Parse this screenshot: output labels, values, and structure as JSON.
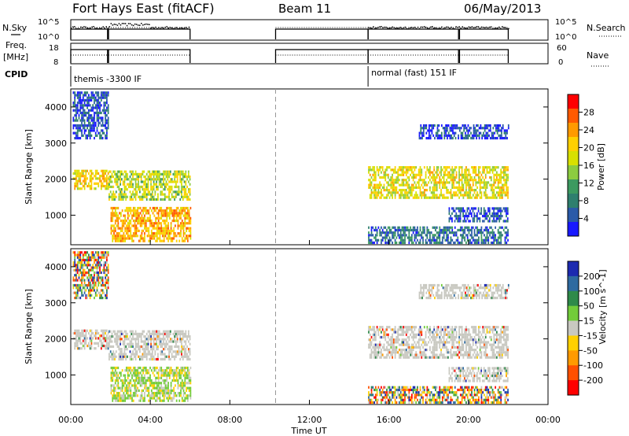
{
  "header": {
    "title": "Fort Hays East (fitACF)",
    "beam": "Beam 11",
    "date": "06/May/2013"
  },
  "side_labels": {
    "nsky": "N.Sky",
    "nsearch": "N.Search",
    "freq_line1": "Freq.",
    "freq_line2": "[MHz]",
    "nave": "Nave",
    "cpid": "CPID"
  },
  "cpid_segments": [
    {
      "start_hour": 0.0,
      "end_hour": 6.0,
      "label": "themis -3300 IF"
    },
    {
      "start_hour": 14.95,
      "end_hour": 22.0,
      "label": "normal (fast) 151 IF"
    }
  ],
  "noise_ticks": {
    "top": "10^5",
    "bottom": "10^0"
  },
  "freq_ticks": [
    "18",
    "8"
  ],
  "nave_ticks": [
    "60",
    "0"
  ],
  "panels": [
    {
      "ylabel": "Slant Range [km]",
      "quantity": "Power [dB]"
    },
    {
      "ylabel": "Slant Range [km]",
      "quantity": "Velocity [m s^-1]"
    }
  ],
  "power_colorbar": {
    "title": "Power [dB]",
    "ticks": [
      "28",
      "24",
      "20",
      "16",
      "12",
      "8",
      "4"
    ],
    "colors": [
      "#ff0000",
      "#ff5a00",
      "#ff9a00",
      "#ffd000",
      "#d8e000",
      "#8ccc40",
      "#3c9a60",
      "#2e7f6e",
      "#2a5aa8",
      "#1818ff"
    ]
  },
  "velocity_colorbar": {
    "title": "Velocity [m s^-1]",
    "ticks": [
      "200",
      "100",
      "50",
      "15",
      "-15",
      "-50",
      "-100",
      "-200"
    ],
    "colors": [
      "#1c2ab0",
      "#2e6aa0",
      "#2e8a4a",
      "#72cc3a",
      "#c8c8c0",
      "#ffd000",
      "#ff9a00",
      "#ff5000",
      "#ff0000"
    ]
  },
  "time_axis": {
    "label": "Time UT",
    "ticks": [
      "00:00",
      "04:00",
      "08:00",
      "12:00",
      "16:00",
      "20:00",
      "00:00"
    ]
  },
  "chart_data": {
    "type": "heatmap",
    "x_range_hours": [
      0,
      24
    ],
    "y_range_km": [
      180,
      4500
    ],
    "y_ticks": [
      1000,
      2000,
      3000,
      4000
    ],
    "data_gap_marker_hour": 10.3,
    "operating_intervals_hours": [
      [
        0.0,
        1.85
      ],
      [
        1.9,
        6.0
      ],
      [
        10.3,
        14.95
      ],
      [
        14.95,
        19.5
      ],
      [
        19.55,
        22.0
      ]
    ],
    "echo_regions": [
      {
        "hours": [
          0.1,
          1.9
        ],
        "range_km": [
          1700,
          2200
        ],
        "power_db": 22,
        "velocity": "-15 to 15"
      },
      {
        "hours": [
          0.1,
          1.9
        ],
        "range_km": [
          3100,
          4400
        ],
        "power_db": 6,
        "velocity": "mixed"
      },
      {
        "hours": [
          1.9,
          6.0
        ],
        "range_km": [
          1400,
          2200
        ],
        "power_db": 18,
        "velocity": "-15 to 15"
      },
      {
        "hours": [
          2.0,
          6.0
        ],
        "range_km": [
          250,
          1200
        ],
        "power_db": 24,
        "velocity": "15 to 50"
      },
      {
        "hours": [
          14.95,
          22.0
        ],
        "range_km": [
          1450,
          2300
        ],
        "power_db": 20,
        "velocity": "-15 to 15"
      },
      {
        "hours": [
          14.95,
          22.0
        ],
        "range_km": [
          200,
          650
        ],
        "power_db": 8,
        "velocity": "mixed"
      },
      {
        "hours": [
          19.0,
          22.0
        ],
        "range_km": [
          800,
          1200
        ],
        "power_db": 6,
        "velocity": "-15 to 15"
      },
      {
        "hours": [
          17.5,
          22.0
        ],
        "range_km": [
          3100,
          3500
        ],
        "power_db": 5,
        "velocity": "-15 to 15"
      }
    ]
  }
}
